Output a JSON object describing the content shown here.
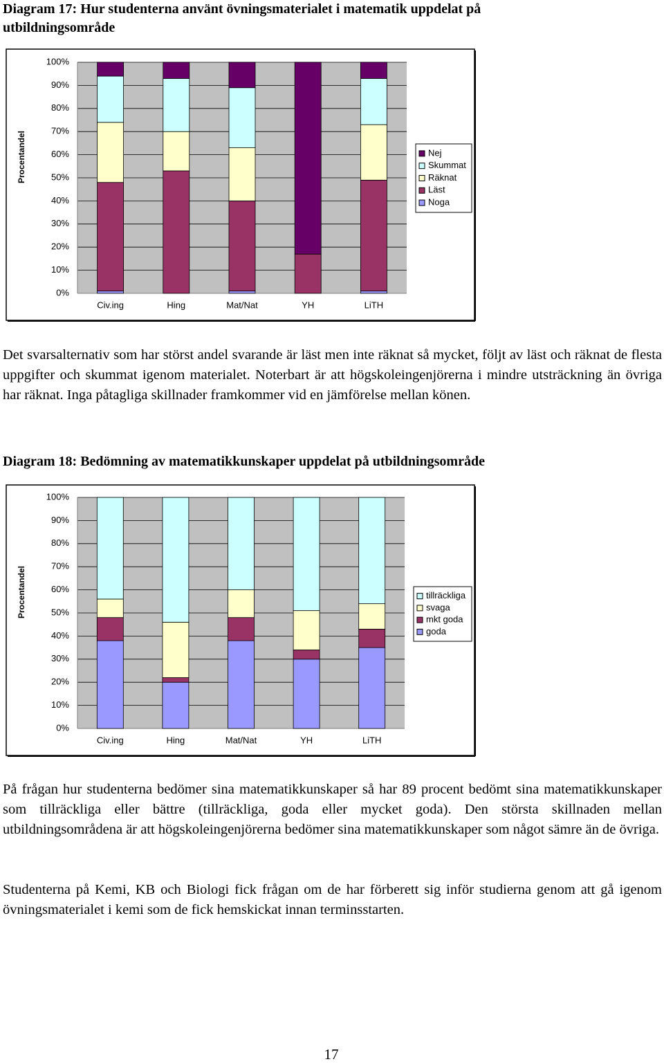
{
  "paragraphs": [
    "Det svarsalternativ som har störst andel svarande är läst men inte räknat så mycket, följt av läst och räknat de flesta uppgifter och skummat igenom materialet. Noterbart är att högskoleingenjörerna i mindre utsträckning än övriga har räknat. Inga påtagliga skillnader framkommer vid en jämförelse mellan könen.",
    "På frågan hur studenterna bedömer sina matematikkunskaper så har 89 procent bedömt sina matematikkunskaper som tillräckliga eller bättre (tillräckliga, goda eller mycket goda). Den största skillnaden mellan utbildningsområdena är att högskoleingenjörerna bedömer sina matematikkunskaper som något sämre än de övriga.",
    "Studenterna på Kemi, KB och Biologi fick frågan om de har förberett sig inför studierna genom att gå igenom övningsmaterialet i kemi som de fick hemskickat innan terminsstarten."
  ],
  "page_number": "17",
  "chart_data": [
    {
      "type": "stacked-bar",
      "title": "Diagram 17: Hur studenterna använt övningsmaterialet i matematik uppdelat på utbildningsområde",
      "y_label": "Procentandel",
      "categories": [
        "Civ.ing",
        "Hing",
        "Mat/Nat",
        "YH",
        "LiTH"
      ],
      "series": [
        {
          "name": "Noga",
          "color": "#9999ff",
          "values": [
            1,
            0,
            1,
            0,
            1
          ]
        },
        {
          "name": "Läst",
          "color": "#993366",
          "values": [
            47,
            53,
            39,
            17,
            48
          ]
        },
        {
          "name": "Räknat",
          "color": "#ffffcc",
          "values": [
            26,
            17,
            23,
            0,
            24
          ]
        },
        {
          "name": "Skummat",
          "color": "#ccffff",
          "values": [
            20,
            23,
            26,
            0,
            20
          ]
        },
        {
          "name": "Nej",
          "color": "#660066",
          "values": [
            6,
            7,
            11,
            83,
            7
          ]
        }
      ],
      "ylim": [
        0,
        100
      ],
      "yticks": [
        {
          "value": 0,
          "label": "0%"
        },
        {
          "value": 10,
          "label": "10%"
        },
        {
          "value": 20,
          "label": "20%"
        },
        {
          "value": 30,
          "label": "30%"
        },
        {
          "value": 40,
          "label": "40%"
        },
        {
          "value": 50,
          "label": "50%"
        },
        {
          "value": 60,
          "label": "60%"
        },
        {
          "value": 70,
          "label": "70%"
        },
        {
          "value": 80,
          "label": "80%"
        },
        {
          "value": 90,
          "label": "90%"
        },
        {
          "value": 100,
          "label": "100%"
        }
      ],
      "grid": true,
      "legend": "right"
    },
    {
      "type": "stacked-bar",
      "title": "Diagram 18: Bedömning av matematikkunskaper uppdelat på utbildningsområde",
      "y_label": "Procentandel",
      "categories": [
        "Civ.ing",
        "Hing",
        "Mat/Nat",
        "YH",
        "LiTH"
      ],
      "series": [
        {
          "name": "goda",
          "color": "#9999ff",
          "values": [
            38,
            20,
            38,
            30,
            35
          ]
        },
        {
          "name": "mkt goda",
          "color": "#993366",
          "values": [
            10,
            2,
            10,
            4,
            8
          ]
        },
        {
          "name": "svaga",
          "color": "#ffffcc",
          "values": [
            8,
            24,
            12,
            17,
            11
          ]
        },
        {
          "name": "tillräckliga",
          "color": "#ccffff",
          "values": [
            44,
            54,
            40,
            49,
            46
          ]
        }
      ],
      "ylim": [
        0,
        100
      ],
      "yticks": [
        {
          "value": 0,
          "label": "0%"
        },
        {
          "value": 10,
          "label": "10%"
        },
        {
          "value": 20,
          "label": "20%"
        },
        {
          "value": 30,
          "label": "30%"
        },
        {
          "value": 40,
          "label": "40%"
        },
        {
          "value": 50,
          "label": "50%"
        },
        {
          "value": 60,
          "label": "60%"
        },
        {
          "value": 70,
          "label": "70%"
        },
        {
          "value": 80,
          "label": "80%"
        },
        {
          "value": 90,
          "label": "90%"
        },
        {
          "value": 100,
          "label": "100%"
        }
      ],
      "grid": true,
      "legend": "right"
    }
  ]
}
